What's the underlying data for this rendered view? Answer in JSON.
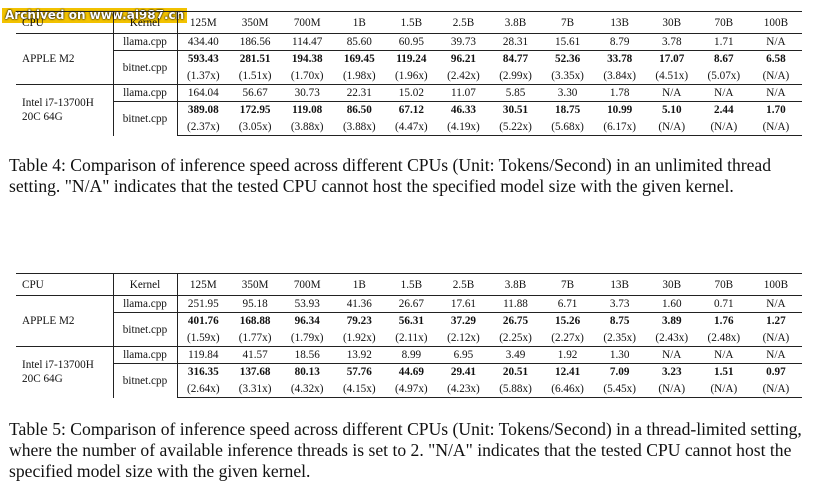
{
  "watermark": "Archived on www.ai987.cn",
  "columns": [
    "125M",
    "350M",
    "700M",
    "1B",
    "1.5B",
    "2.5B",
    "3.8B",
    "7B",
    "13B",
    "30B",
    "70B",
    "100B"
  ],
  "table4": {
    "header_cpu": "CPU",
    "header_kernel": "Kernel",
    "apple_cpu": "APPLE M2",
    "apple_llama_label": "llama.cpp",
    "apple_llama": [
      "434.40",
      "186.56",
      "114.47",
      "85.60",
      "60.95",
      "39.73",
      "28.31",
      "15.61",
      "8.79",
      "3.78",
      "1.71",
      "N/A"
    ],
    "apple_bitnet_label": "bitnet.cpp",
    "apple_bitnet": [
      "593.43",
      "281.51",
      "194.38",
      "169.45",
      "119.24",
      "96.21",
      "84.77",
      "52.36",
      "33.78",
      "17.07",
      "8.67",
      "6.58"
    ],
    "apple_speedup": [
      "(1.37x)",
      "(1.51x)",
      "(1.70x)",
      "(1.98x)",
      "(1.96x)",
      "(2.42x)",
      "(2.99x)",
      "(3.35x)",
      "(3.84x)",
      "(4.51x)",
      "(5.07x)",
      "(N/A)"
    ],
    "intel_cpu": "Intel i7-13700H 20C 64G",
    "intel_llama_label": "llama.cpp",
    "intel_llama": [
      "164.04",
      "56.67",
      "30.73",
      "22.31",
      "15.02",
      "11.07",
      "5.85",
      "3.30",
      "1.78",
      "N/A",
      "N/A",
      "N/A"
    ],
    "intel_bitnet_label": "bitnet.cpp",
    "intel_bitnet": [
      "389.08",
      "172.95",
      "119.08",
      "86.50",
      "67.12",
      "46.33",
      "30.51",
      "18.75",
      "10.99",
      "5.10",
      "2.44",
      "1.70"
    ],
    "intel_speedup": [
      "(2.37x)",
      "(3.05x)",
      "(3.88x)",
      "(3.88x)",
      "(4.47x)",
      "(4.19x)",
      "(5.22x)",
      "(5.68x)",
      "(6.17x)",
      "(N/A)",
      "(N/A)",
      "(N/A)"
    ],
    "caption": "Table 4: Comparison of inference speed across different CPUs (Unit: Tokens/Second) in an unlimited thread setting. \"N/A\" indicates that the tested CPU cannot host the specified model size with the given kernel."
  },
  "table5": {
    "header_cpu": "CPU",
    "header_kernel": "Kernel",
    "apple_cpu": "APPLE M2",
    "apple_llama_label": "llama.cpp",
    "apple_llama": [
      "251.95",
      "95.18",
      "53.93",
      "41.36",
      "26.67",
      "17.61",
      "11.88",
      "6.71",
      "3.73",
      "1.60",
      "0.71",
      "N/A"
    ],
    "apple_bitnet_label": "bitnet.cpp",
    "apple_bitnet": [
      "401.76",
      "168.88",
      "96.34",
      "79.23",
      "56.31",
      "37.29",
      "26.75",
      "15.26",
      "8.75",
      "3.89",
      "1.76",
      "1.27"
    ],
    "apple_speedup": [
      "(1.59x)",
      "(1.77x)",
      "(1.79x)",
      "(1.92x)",
      "(2.11x)",
      "(2.12x)",
      "(2.25x)",
      "(2.27x)",
      "(2.35x)",
      "(2.43x)",
      "(2.48x)",
      "(N/A)"
    ],
    "intel_cpu": "Intel i7-13700H 20C 64G",
    "intel_llama_label": "llama.cpp",
    "intel_llama": [
      "119.84",
      "41.57",
      "18.56",
      "13.92",
      "8.99",
      "6.95",
      "3.49",
      "1.92",
      "1.30",
      "N/A",
      "N/A",
      "N/A"
    ],
    "intel_bitnet_label": "bitnet.cpp",
    "intel_bitnet": [
      "316.35",
      "137.68",
      "80.13",
      "57.76",
      "44.69",
      "29.41",
      "20.51",
      "12.41",
      "7.09",
      "3.23",
      "1.51",
      "0.97"
    ],
    "intel_speedup": [
      "(2.64x)",
      "(3.31x)",
      "(4.32x)",
      "(4.15x)",
      "(4.97x)",
      "(4.23x)",
      "(5.88x)",
      "(6.46x)",
      "(5.45x)",
      "(N/A)",
      "(N/A)",
      "(N/A)"
    ],
    "caption": "Table 5: Comparison of inference speed across different CPUs (Unit: Tokens/Second) in a thread-limited setting, where the number of available inference threads is set to 2. \"N/A\" indicates that the tested CPU cannot host the specified model size with the given kernel."
  }
}
